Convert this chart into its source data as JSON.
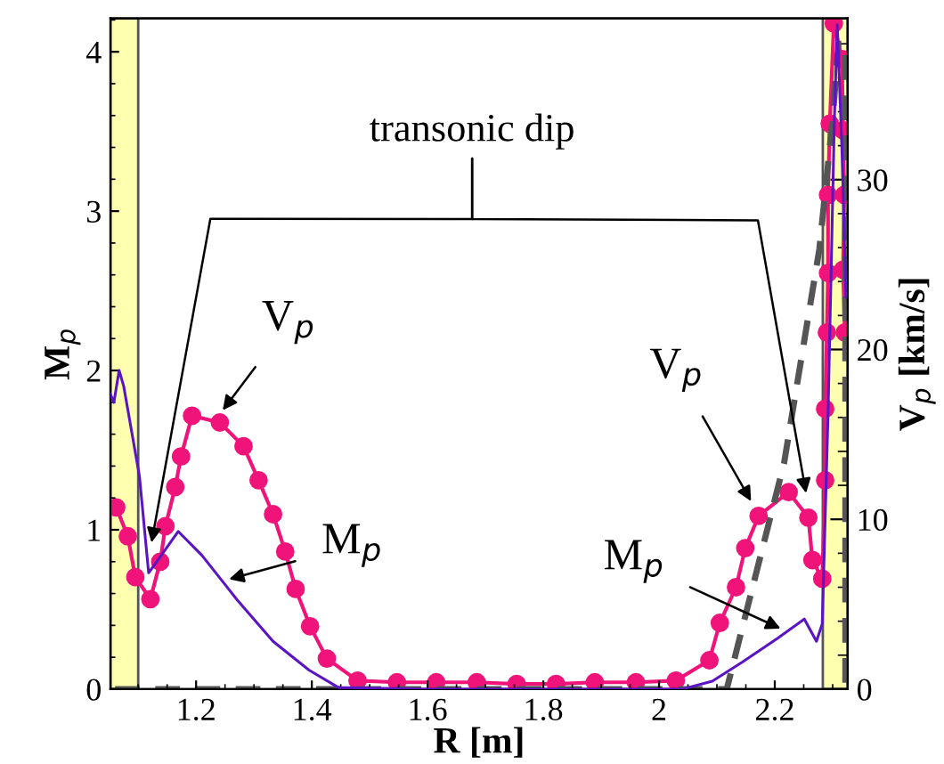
{
  "chart_data": {
    "type": "line",
    "xlabel": "R [m]",
    "ylabel": "M$_{p}$",
    "y2label": "V$_{p}$ [km/s]",
    "xlim": [
      1.052,
      2.326
    ],
    "xticks": [
      1.2,
      1.4,
      1.6,
      1.8,
      2,
      2.2
    ],
    "ylim": [
      0,
      4.21
    ],
    "yticks": [
      0,
      1,
      2,
      3,
      4
    ],
    "y2lim": [
      0,
      39.5
    ],
    "y2ticks": [
      0,
      10,
      20,
      30
    ],
    "grid": false,
    "legend": false,
    "bands": [
      {
        "axis": "x",
        "from": 1.052,
        "to": 1.1,
        "color": "#ffffb0"
      },
      {
        "axis": "x",
        "from": 2.283,
        "to": 2.326,
        "color": "#ffffb0"
      }
    ],
    "series": [
      {
        "color": "#5a14c4",
        "marker": "none",
        "line_style": "solid",
        "x": [
          1.052,
          1.058,
          1.067,
          1.075,
          1.102,
          1.118,
          1.138,
          1.169,
          1.21,
          1.271,
          1.333,
          1.395,
          1.446,
          1.6,
          1.8,
          2.04,
          2.092,
          2.144,
          2.205,
          2.251,
          2.272,
          2.282,
          2.292,
          2.303,
          2.308,
          2.316,
          2.323
        ],
        "values": [
          1.85,
          1.8,
          2.0,
          1.9,
          1.34,
          0.73,
          0.83,
          0.99,
          0.84,
          0.56,
          0.3,
          0.12,
          0.01,
          0,
          0,
          0,
          0.05,
          0.17,
          0.32,
          0.44,
          0.3,
          0.41,
          1.72,
          3.58,
          4.17,
          3.39,
          2.46
        ]
      },
      {
        "color": "#f0147a",
        "axis": "y2",
        "marker": "circle",
        "line_style": "solid",
        "x": [
          1.062,
          1.082,
          1.095,
          1.121,
          1.138,
          1.147,
          1.164,
          1.174,
          1.193,
          1.241,
          1.282,
          1.308,
          1.333,
          1.354,
          1.372,
          1.397,
          1.426,
          1.479,
          1.547,
          1.615,
          1.685,
          1.754,
          1.822,
          1.889,
          1.96,
          2.029,
          2.087,
          2.105,
          2.133,
          2.149,
          2.172,
          2.224,
          2.258,
          2.265,
          2.282,
          2.287,
          2.287,
          2.29,
          2.292,
          2.292,
          2.295,
          2.302,
          2.316,
          2.318,
          2.32,
          2.318,
          2.321
        ],
        "values": [
          10.7,
          9.0,
          6.6,
          5.3,
          7.5,
          9.6,
          11.9,
          13.7,
          16.1,
          15.7,
          14.3,
          12.3,
          10.3,
          8.1,
          5.9,
          3.7,
          1.8,
          0.5,
          0.4,
          0.4,
          0.4,
          0.3,
          0.3,
          0.4,
          0.4,
          0.5,
          1.7,
          3.9,
          6.0,
          8.3,
          10.2,
          11.6,
          10.1,
          7.6,
          6.5,
          12.3,
          16.5,
          21.0,
          24.5,
          29.1,
          33.3,
          39.2,
          37.1,
          32.9,
          29.1,
          24.7,
          21.0
        ]
      },
      {
        "color": "#555555",
        "axis": "y2",
        "marker": "none",
        "line_style": "dashed",
        "x": [
          1.06,
          2.117,
          2.216,
          2.277,
          2.3,
          2.31,
          2.322,
          2.322
        ],
        "values": [
          0,
          0,
          13.3,
          25.9,
          33.6,
          38,
          38,
          0
        ]
      }
    ],
    "annotations": [
      "transonic dip",
      {
        "text": "V$_{p}$",
        "x": 1.246,
        "y": 1.75
      },
      {
        "text": "M$_{p}$",
        "x": 1.257,
        "y": 0.69
      },
      {
        "text": "V$_{p}$",
        "x": 2.159,
        "y": 1.18
      },
      {
        "text": "M$_{p}$",
        "x": 2.21,
        "y": 0.38
      }
    ]
  }
}
